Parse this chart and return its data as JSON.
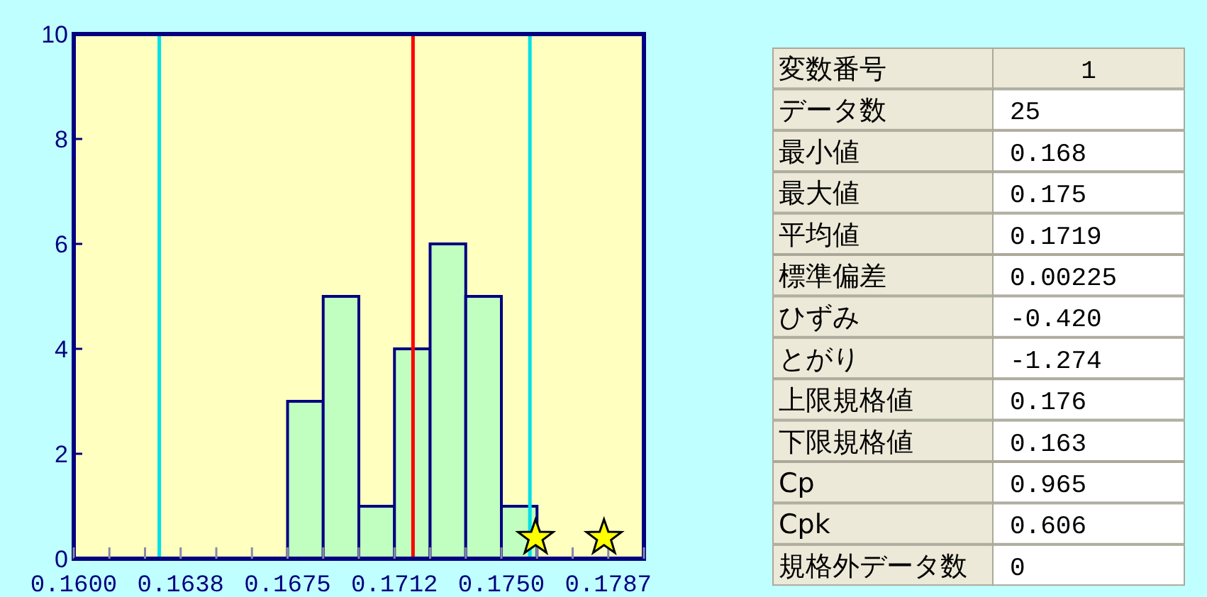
{
  "chart_data": [
    {
      "type": "histogram",
      "bins": [
        0.1675,
        0.16875,
        0.17,
        0.17125,
        0.1725,
        0.17375,
        0.175,
        0.17625
      ],
      "values": [
        3,
        5,
        1,
        4,
        6,
        5,
        1
      ],
      "color": "#c0ffc0",
      "xlim": [
        0.16,
        0.18
      ],
      "xticks": [
        {
          "value": 0.16,
          "label": "0.1600"
        },
        {
          "value": 0.16125,
          "label": null
        },
        {
          "value": 0.1625,
          "label": null
        },
        {
          "value": 0.16375,
          "label": "0.1638"
        },
        {
          "value": 0.165,
          "label": null
        },
        {
          "value": 0.16625,
          "label": null
        },
        {
          "value": 0.1675,
          "label": "0.1675"
        },
        {
          "value": 0.16875,
          "label": null
        },
        {
          "value": 0.17,
          "label": null
        },
        {
          "value": 0.17125,
          "label": "0.1712"
        },
        {
          "value": 0.1725,
          "label": null
        },
        {
          "value": 0.17375,
          "label": null
        },
        {
          "value": 0.175,
          "label": "0.1750"
        },
        {
          "value": 0.17625,
          "label": null
        },
        {
          "value": 0.1775,
          "label": null
        },
        {
          "value": 0.17875,
          "label": "0.1787"
        },
        {
          "value": 0.18,
          "label": null
        }
      ],
      "ylim": [
        0,
        10
      ],
      "yticks": [
        0,
        2,
        4,
        6,
        8,
        10
      ],
      "grid": false,
      "series": [
        {
          "type": "scatter",
          "color": "#ffff00",
          "marker": "star",
          "x": [
            0.1762,
            0.1786
          ],
          "values": [
            0.4,
            0.4
          ]
        }
      ],
      "ref_lines": [
        {
          "axis": "x",
          "value": 0.163,
          "color": "#00e0e8"
        },
        {
          "axis": "x",
          "value": 0.1719,
          "color": "#ff0000"
        },
        {
          "axis": "x",
          "value": 0.176,
          "color": "#00e0e8"
        }
      ]
    },
    {
      "type": "other",
      "categories": [
        "変数番号",
        "データ数",
        "最小値",
        "最大値",
        "平均値",
        "標準偏差",
        "ひずみ",
        "とがり",
        "上限規格値",
        "下限規格値",
        "Cp",
        "Cpk",
        "規格外データ数"
      ],
      "value_labels": [
        "1",
        "25",
        "0.168",
        "0.175",
        "0.1719",
        "0.00225",
        "-0.420",
        "-1.274",
        "0.176",
        "0.163",
        "0.965",
        "0.606",
        "0"
      ]
    }
  ]
}
